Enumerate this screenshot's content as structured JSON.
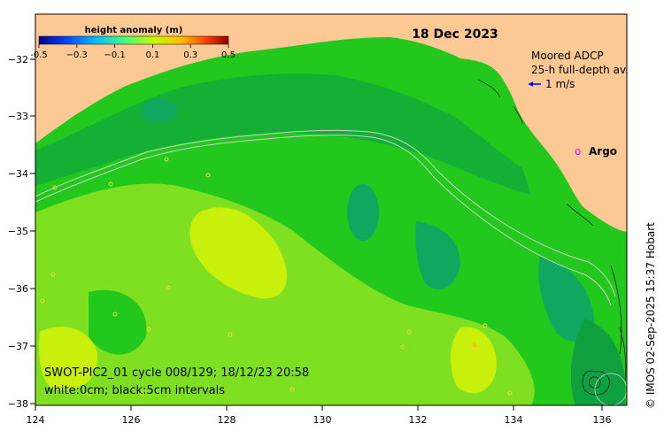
{
  "map": {
    "date": "18 Dec 2023",
    "colorbar": {
      "title": "height anomaly (m)",
      "tick_labels": [
        "-0.5",
        "−0.3",
        "−0.1",
        "0.1",
        "0.3",
        "0.5"
      ],
      "colors": [
        "#00008f",
        "#0040ff",
        "#00bfff",
        "#40ff80",
        "#bfff00",
        "#ffbf00",
        "#ff4000",
        "#8f0000"
      ]
    },
    "legend": {
      "adcp_title": "Moored ADCP",
      "adcp_subtitle": "25-h full-depth av.",
      "adcp_scale": "1 m/s",
      "argo_marker": "o",
      "argo_label": "Argo"
    },
    "y_ticks": [
      "−32",
      "−33",
      "−34",
      "−35",
      "−36",
      "−37",
      "−38"
    ],
    "x_ticks": [
      "124",
      "126",
      "128",
      "130",
      "132",
      "134",
      "136"
    ],
    "caption_line1": "SWOT-PIC2_01 cycle 008/129; 18/12/23 20:58",
    "caption_line2": "white:0cm; black:5cm intervals",
    "credit": "© IMOS 02-Sep-2025 15:37 Hobart",
    "colors": {
      "land": "#fcc894",
      "sea_base": "#22c81c",
      "sea_dark": "#0fa040",
      "sea_teal": "#10a860",
      "sea_light": "#7ee020",
      "sea_yellow": "#c8f00a",
      "adcp_arrow": "#0000ff",
      "argo": "#ff00ff"
    }
  }
}
